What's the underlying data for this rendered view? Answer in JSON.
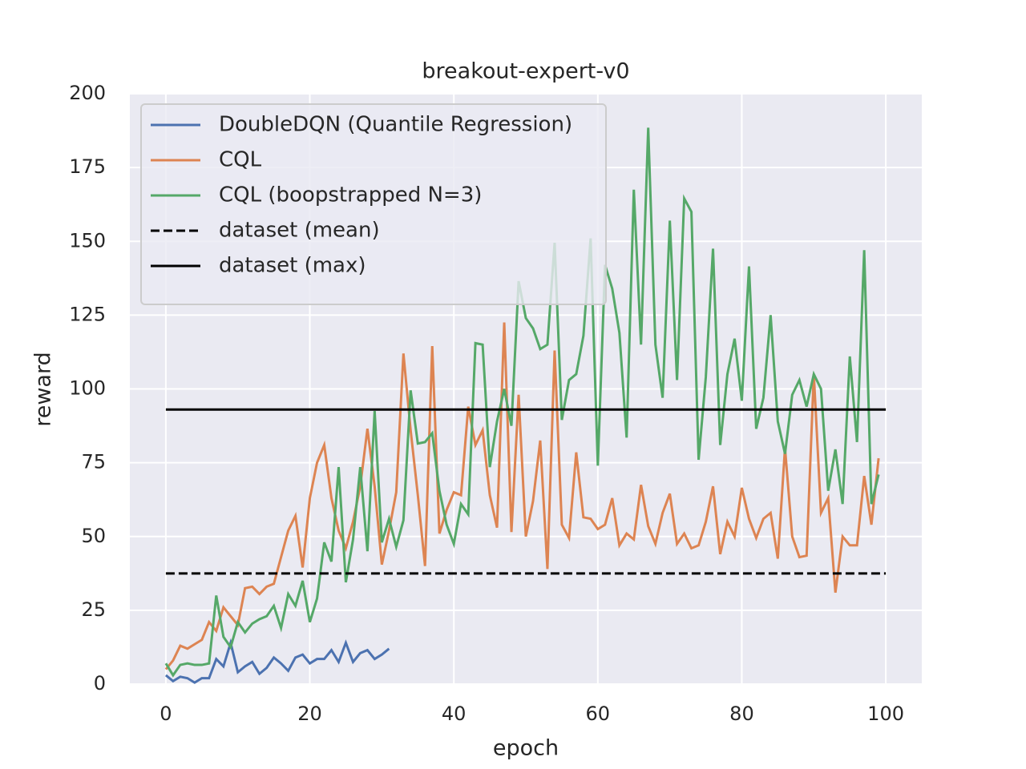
{
  "chart_data": {
    "type": "line",
    "title": "breakout-expert-v0",
    "x_label": "epoch",
    "y_label": "reward",
    "xlim": [
      -5,
      105
    ],
    "ylim": [
      0,
      200
    ],
    "xticks": [
      0,
      20,
      40,
      60,
      80,
      100
    ],
    "yticks": [
      0,
      25,
      50,
      75,
      100,
      125,
      150,
      175,
      200
    ],
    "grid": true,
    "legend": "upper left",
    "series": [
      {
        "name": "DoubleDQN (Quantile Regression)",
        "color": "#4c72b0",
        "style": "solid",
        "x": [
          0,
          1,
          2,
          3,
          4,
          5,
          6,
          7,
          8,
          9,
          10,
          11,
          12,
          13,
          14,
          15,
          16,
          17,
          18,
          19,
          20,
          21,
          22,
          23,
          24,
          25,
          26,
          27,
          28,
          29,
          30,
          31
        ],
        "values": [
          3,
          1,
          2.5,
          2,
          0.5,
          2,
          2,
          8.5,
          6,
          14,
          4,
          6,
          7.5,
          3.5,
          5.5,
          9,
          7,
          4.5,
          9,
          10,
          7,
          8.5,
          8.5,
          11.5,
          7.5,
          14,
          7.5,
          10.5,
          11.5,
          8.5,
          10,
          12
        ]
      },
      {
        "name": "CQL",
        "color": "#dd8452",
        "style": "solid",
        "x": [
          0,
          1,
          2,
          3,
          4,
          5,
          6,
          7,
          8,
          9,
          10,
          11,
          12,
          13,
          14,
          15,
          16,
          17,
          18,
          19,
          20,
          21,
          22,
          23,
          24,
          25,
          26,
          27,
          28,
          29,
          30,
          31,
          32,
          33,
          34,
          35,
          36,
          37,
          38,
          39,
          40,
          41,
          42,
          43,
          44,
          45,
          46,
          47,
          48,
          49,
          50,
          51,
          52,
          53,
          54,
          55,
          56,
          57,
          58,
          59,
          60,
          61,
          62,
          63,
          64,
          65,
          66,
          67,
          68,
          69,
          70,
          71,
          72,
          73,
          74,
          75,
          76,
          77,
          78,
          79,
          80,
          81,
          82,
          83,
          84,
          85,
          86,
          87,
          88,
          89,
          90,
          91,
          92,
          93,
          94,
          95,
          96,
          97,
          98,
          99
        ],
        "values": [
          5,
          8,
          13,
          12,
          13.5,
          15,
          21,
          18,
          26,
          23,
          20,
          32.5,
          33,
          30.5,
          33,
          34,
          43,
          52,
          57,
          39.5,
          63,
          75,
          81,
          63,
          52,
          46,
          55,
          67,
          86.5,
          67,
          40.5,
          52,
          65,
          112,
          86,
          64,
          40,
          114.5,
          51,
          59,
          65,
          64,
          94,
          81,
          86,
          64,
          53,
          122.5,
          51.5,
          98,
          50,
          62,
          82.5,
          39,
          113,
          54,
          49.5,
          78.5,
          56.5,
          56,
          52.5,
          54,
          63,
          47,
          51,
          49,
          67.5,
          53.5,
          47.5,
          58,
          64.5,
          47.5,
          51,
          46,
          47,
          55,
          67,
          44,
          55,
          50,
          66.5,
          56,
          49.5,
          56,
          58,
          42.5,
          80,
          50,
          43,
          43.5,
          105,
          58,
          63,
          31,
          50,
          47,
          47,
          70.5,
          54,
          76.5
        ]
      },
      {
        "name": "CQL (boopstrapped N=3)",
        "color": "#55a868",
        "style": "solid",
        "x": [
          0,
          1,
          2,
          3,
          4,
          5,
          6,
          7,
          8,
          9,
          10,
          11,
          12,
          13,
          14,
          15,
          16,
          17,
          18,
          19,
          20,
          21,
          22,
          23,
          24,
          25,
          26,
          27,
          28,
          29,
          30,
          31,
          32,
          33,
          34,
          35,
          36,
          37,
          38,
          39,
          40,
          41,
          42,
          43,
          44,
          45,
          46,
          47,
          48,
          49,
          50,
          51,
          52,
          53,
          54,
          55,
          56,
          57,
          58,
          59,
          60,
          61,
          62,
          63,
          64,
          65,
          66,
          67,
          68,
          69,
          70,
          71,
          72,
          73,
          74,
          75,
          76,
          77,
          78,
          79,
          80,
          81,
          82,
          83,
          84,
          85,
          86,
          87,
          88,
          89,
          90,
          91,
          92,
          93,
          94,
          95,
          96,
          97,
          98,
          99
        ],
        "values": [
          7,
          3,
          6.5,
          7,
          6.5,
          6.5,
          7,
          30,
          16,
          12.5,
          21,
          17.5,
          20.5,
          22,
          23,
          26.5,
          19,
          30.5,
          26.5,
          35,
          21,
          29,
          48,
          41.5,
          73.5,
          34.5,
          49,
          73.5,
          45,
          92.5,
          48,
          56,
          46.5,
          55.5,
          99.5,
          81.5,
          82,
          85,
          65.5,
          54,
          47.5,
          61,
          57.5,
          115.5,
          115,
          73.5,
          89,
          100,
          87.5,
          136.5,
          124,
          120.5,
          113.5,
          115,
          149.5,
          89.5,
          103,
          105,
          118,
          151,
          74,
          142,
          134,
          119,
          83.5,
          167.5,
          115,
          188.5,
          115,
          97,
          157,
          103,
          164.5,
          160,
          76,
          104,
          147.5,
          81,
          105,
          117,
          96,
          141.5,
          86.5,
          97,
          125,
          89,
          78,
          98,
          103,
          94,
          105,
          100,
          65.5,
          79.5,
          61,
          111,
          82,
          147,
          61,
          71
        ]
      },
      {
        "name": "dataset (mean)",
        "color": "#000000",
        "style": "dashed",
        "x": [
          0,
          100
        ],
        "values": [
          37.5,
          37.5
        ]
      },
      {
        "name": "dataset (max)",
        "color": "#000000",
        "style": "solid",
        "x": [
          0,
          100
        ],
        "values": [
          93,
          93
        ]
      }
    ]
  }
}
